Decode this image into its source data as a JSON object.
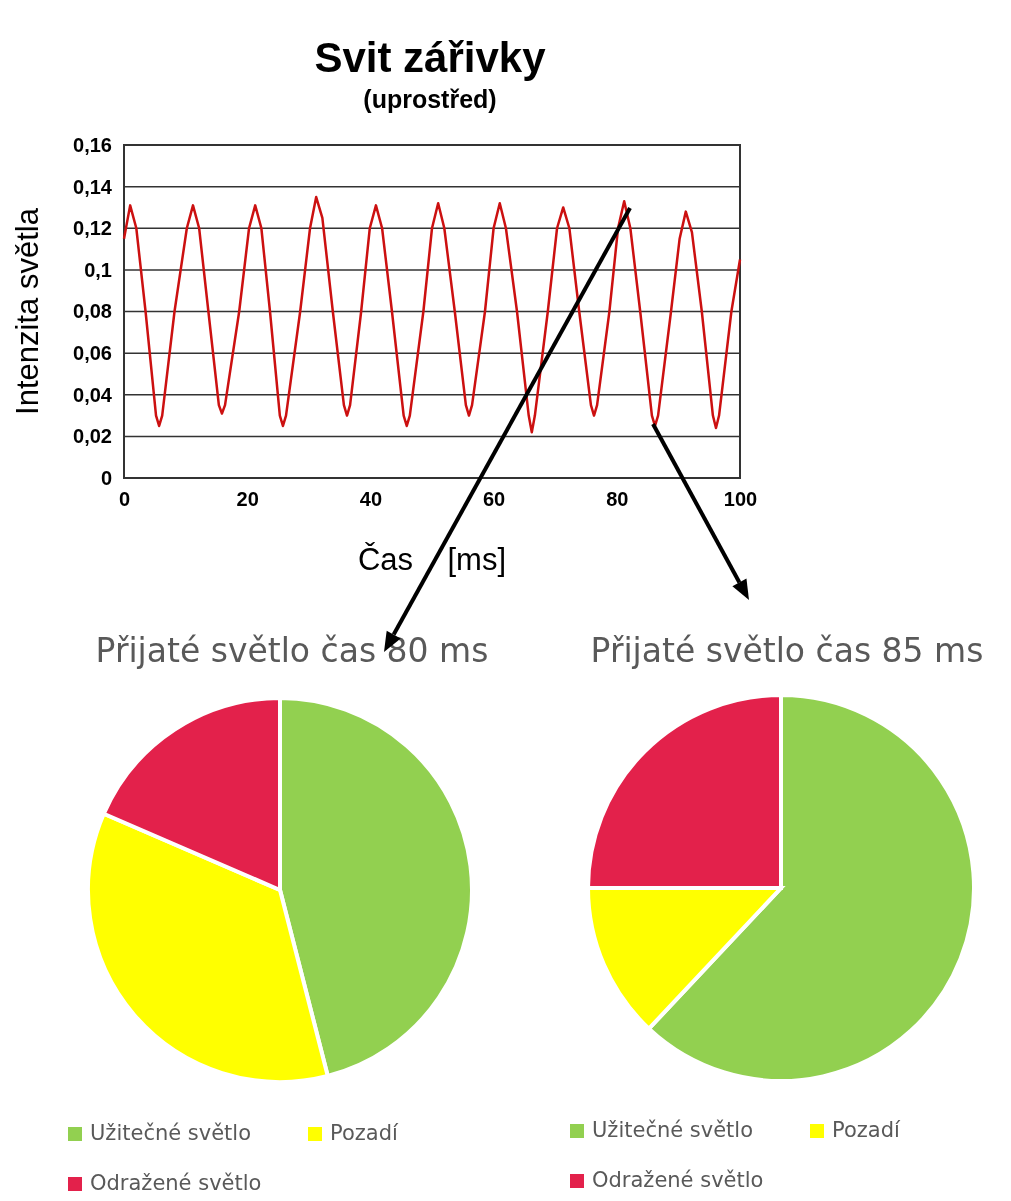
{
  "chart_data": [
    {
      "type": "line",
      "title": "Svit zářivky",
      "subtitle": "(uprostřed)",
      "xlabel": "Čas    [ms]",
      "ylabel": "Intenzita světla",
      "xlim": [
        0,
        100
      ],
      "xticks": [
        0,
        20,
        40,
        60,
        80,
        100
      ],
      "ylim": [
        0,
        0.16
      ],
      "yticks": [
        {
          "value": 0,
          "label": "0"
        },
        {
          "value": 0.02,
          "label": "0,02"
        },
        {
          "value": 0.04,
          "label": "0,04"
        },
        {
          "value": 0.06,
          "label": "0,06"
        },
        {
          "value": 0.08,
          "label": "0,08"
        },
        {
          "value": 0.1,
          "label": "0,1"
        },
        {
          "value": 0.12,
          "label": "0,12"
        },
        {
          "value": 0.14,
          "label": "0,14"
        },
        {
          "value": 0.16,
          "label": "0,16"
        }
      ],
      "grid": "y",
      "marker": "none",
      "line_style": "solid",
      "series": [
        {
          "color": "#cc1010",
          "x": [
            0,
            1.0,
            2.0,
            3.5,
            5.2,
            5.7,
            6.2,
            8.2,
            10.2,
            11.2,
            12.2,
            13.7,
            15.4,
            15.9,
            16.4,
            18.7,
            20.3,
            21.3,
            22.3,
            23.7,
            25.3,
            25.8,
            26.3,
            28.6,
            30.2,
            31.2,
            32.2,
            33.9,
            35.7,
            36.2,
            36.7,
            38.5,
            39.9,
            40.9,
            41.9,
            43.5,
            45.4,
            45.9,
            46.4,
            48.6,
            50.0,
            51.0,
            52.0,
            53.7,
            55.5,
            56.0,
            56.5,
            58.6,
            60.0,
            61.0,
            62.0,
            63.8,
            65.7,
            66.2,
            66.7,
            68.8,
            70.3,
            71.3,
            72.3,
            73.9,
            75.8,
            76.3,
            76.8,
            78.8,
            80.2,
            81.2,
            82.2,
            83.8,
            85.7,
            86.2,
            86.7,
            88.8,
            90.2,
            91.2,
            92.2,
            93.8,
            95.6,
            96.1,
            96.6,
            98.6,
            100
          ],
          "values": [
            0.115,
            0.131,
            0.12,
            0.08,
            0.03,
            0.025,
            0.03,
            0.08,
            0.12,
            0.131,
            0.12,
            0.08,
            0.035,
            0.031,
            0.035,
            0.08,
            0.12,
            0.131,
            0.12,
            0.08,
            0.03,
            0.025,
            0.03,
            0.08,
            0.12,
            0.135,
            0.125,
            0.08,
            0.035,
            0.03,
            0.035,
            0.08,
            0.12,
            0.131,
            0.12,
            0.08,
            0.03,
            0.025,
            0.03,
            0.08,
            0.12,
            0.132,
            0.12,
            0.08,
            0.035,
            0.03,
            0.035,
            0.08,
            0.12,
            0.132,
            0.12,
            0.08,
            0.03,
            0.022,
            0.03,
            0.08,
            0.12,
            0.13,
            0.12,
            0.08,
            0.035,
            0.03,
            0.035,
            0.08,
            0.12,
            0.133,
            0.12,
            0.08,
            0.03,
            0.025,
            0.03,
            0.08,
            0.115,
            0.128,
            0.118,
            0.08,
            0.03,
            0.024,
            0.03,
            0.08,
            0.105
          ]
        }
      ]
    },
    {
      "type": "pie",
      "title": "Přijaté světlo čas 80 ms",
      "categories": [
        "Užitečné světlo",
        "Pozadí",
        "Odražené světlo"
      ],
      "values": [
        46,
        35.5,
        18.5
      ],
      "colors": [
        "#92d050",
        "#ffff00",
        "#e3214b"
      ],
      "legend": "bottom"
    },
    {
      "type": "pie",
      "title": "Přijaté světlo čas 85 ms",
      "categories": [
        "Užitečné světlo",
        "Pozadí",
        "Odražené světlo"
      ],
      "values": [
        62,
        13,
        25
      ],
      "colors": [
        "#92d050",
        "#ffff00",
        "#e3214b"
      ],
      "legend": "bottom"
    }
  ]
}
